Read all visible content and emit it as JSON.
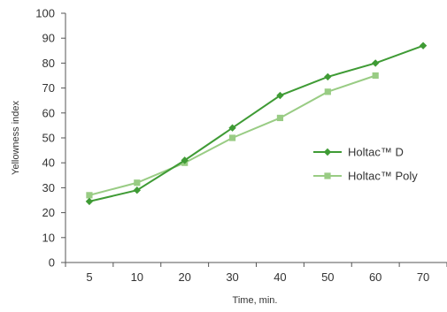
{
  "chart_data": {
    "type": "line",
    "categories": [
      "5",
      "10",
      "20",
      "30",
      "40",
      "50",
      "60",
      "70"
    ],
    "series": [
      {
        "name": "Holtac™ D",
        "values": [
          24.5,
          29,
          41,
          54,
          67,
          74.5,
          80,
          87
        ],
        "color": "#3f9b35",
        "marker": "diamond"
      },
      {
        "name": "Holtac™ Poly",
        "values": [
          27,
          32,
          40,
          50,
          58,
          68.5,
          75,
          null
        ],
        "color": "#99cc84",
        "marker": "square"
      }
    ],
    "yticks": [
      "0",
      "10",
      "20",
      "30",
      "40",
      "50",
      "60",
      "70",
      "80",
      "90",
      "100"
    ],
    "ylim": [
      0,
      100
    ],
    "xlabel": "Time, min.",
    "ylabel": "Yellowness index",
    "legend": "right",
    "grid": false
  }
}
